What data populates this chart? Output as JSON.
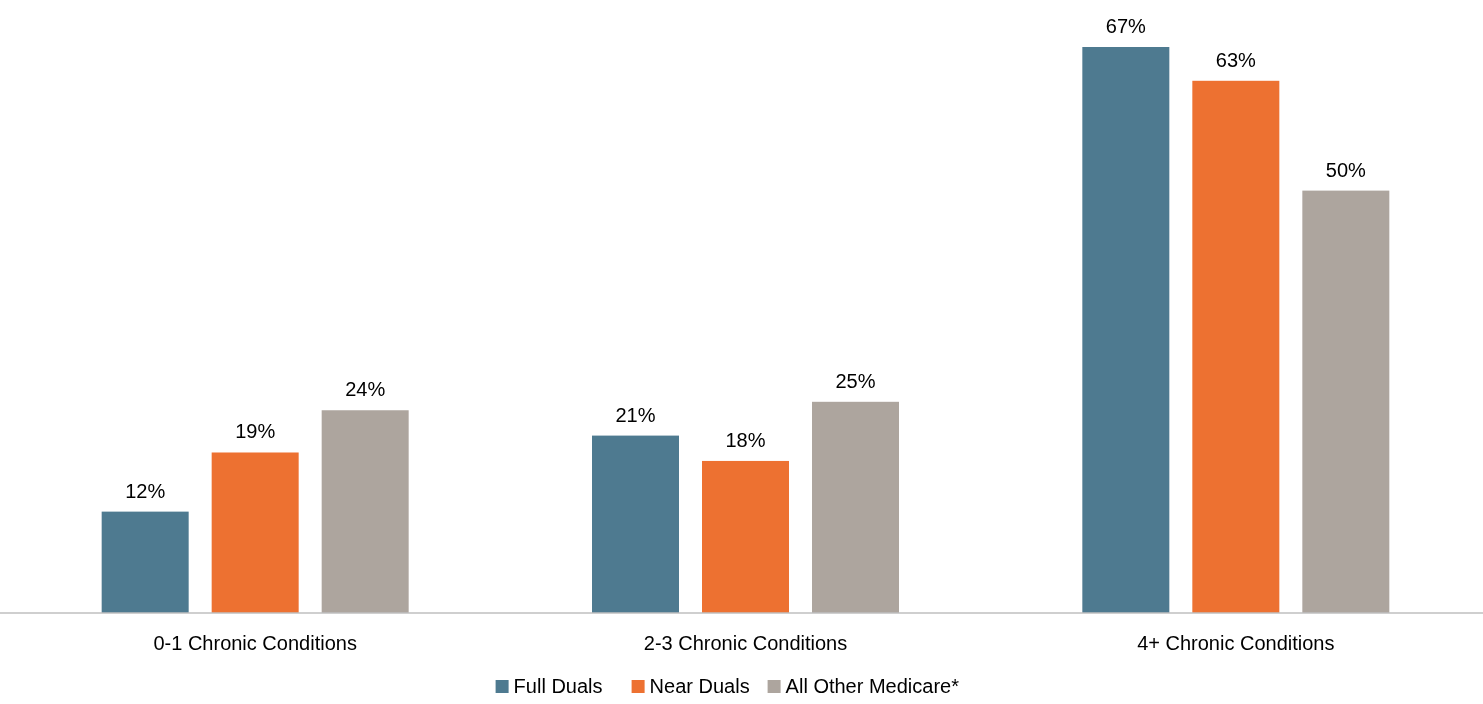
{
  "chart_data": {
    "type": "bar",
    "categories": [
      "0-1 Chronic Conditions",
      "2-3 Chronic Conditions",
      "4+ Chronic Conditions"
    ],
    "series": [
      {
        "name": "Full Duals",
        "color": "#4e7a90",
        "values": [
          12,
          21,
          67
        ],
        "value_labels": [
          "12%",
          "21%",
          "67%"
        ]
      },
      {
        "name": "Near Duals",
        "color": "#ed7131",
        "values": [
          19,
          18,
          63
        ],
        "value_labels": [
          "19%",
          "18%",
          "63%"
        ]
      },
      {
        "name": "All Other Medicare*",
        "color": "#ada59e",
        "values": [
          24,
          25,
          50
        ],
        "value_labels": [
          "24%",
          "25%",
          "50%"
        ]
      }
    ],
    "legend": "bottom"
  }
}
